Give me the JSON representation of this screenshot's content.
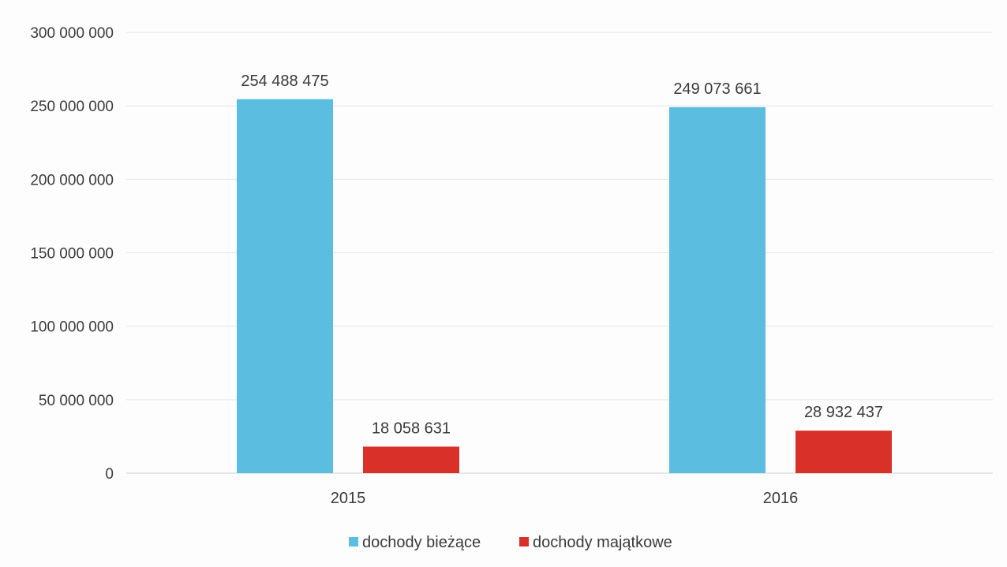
{
  "chart_data": {
    "type": "bar",
    "categories": [
      "2015",
      "2016"
    ],
    "series": [
      {
        "name": "dochody bieżące",
        "color": "#5bbde0",
        "values": [
          254488475,
          249073661
        ],
        "labels": [
          "254 488 475",
          "249 073 661"
        ]
      },
      {
        "name": "dochody majątkowe",
        "color": "#d9302a",
        "values": [
          18058631,
          28932437
        ],
        "labels": [
          "18 058 631",
          "28 932 437"
        ]
      }
    ],
    "ylim": [
      0,
      300000000
    ],
    "yticks": [
      0,
      50000000,
      100000000,
      150000000,
      200000000,
      250000000,
      300000000
    ],
    "ytick_labels": [
      "0",
      "50 000 000",
      "100 000 000",
      "150 000 000",
      "200 000 000",
      "250 000 000",
      "300 000 000"
    ],
    "grid": true,
    "legend_position": "bottom",
    "title": "",
    "xlabel": "",
    "ylabel": ""
  }
}
